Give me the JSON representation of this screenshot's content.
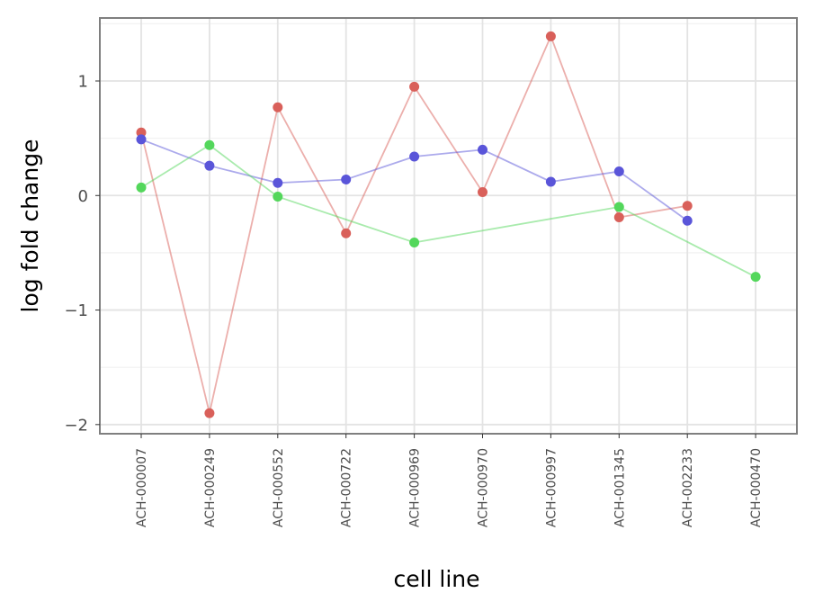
{
  "chart_data": {
    "type": "line",
    "title": "",
    "xlabel": "cell line",
    "ylabel": "log fold change",
    "categories": [
      "ACH-000007",
      "ACH-000249",
      "ACH-000552",
      "ACH-000722",
      "ACH-000969",
      "ACH-000970",
      "ACH-000997",
      "ACH-001345",
      "ACH-002233",
      "ACH-000470"
    ],
    "ylim": [
      -2.08,
      1.55
    ],
    "yticks": [
      -2,
      -1,
      0,
      1
    ],
    "yticks_labels": [
      "−2",
      "−1",
      "0",
      "1"
    ],
    "grid": true,
    "legend": "none",
    "series": [
      {
        "color": "#d9605a",
        "values": [
          0.55,
          -1.9,
          0.77,
          -0.33,
          0.95,
          0.03,
          1.39,
          -0.19,
          -0.09,
          null
        ]
      },
      {
        "color": "#5a55d9",
        "values": [
          0.49,
          0.26,
          0.11,
          0.14,
          0.34,
          0.4,
          0.12,
          0.21,
          -0.22,
          null
        ]
      },
      {
        "color": "#53d75b",
        "values": [
          0.07,
          0.44,
          -0.01,
          null,
          -0.41,
          null,
          null,
          -0.1,
          null,
          -0.71
        ]
      }
    ]
  }
}
